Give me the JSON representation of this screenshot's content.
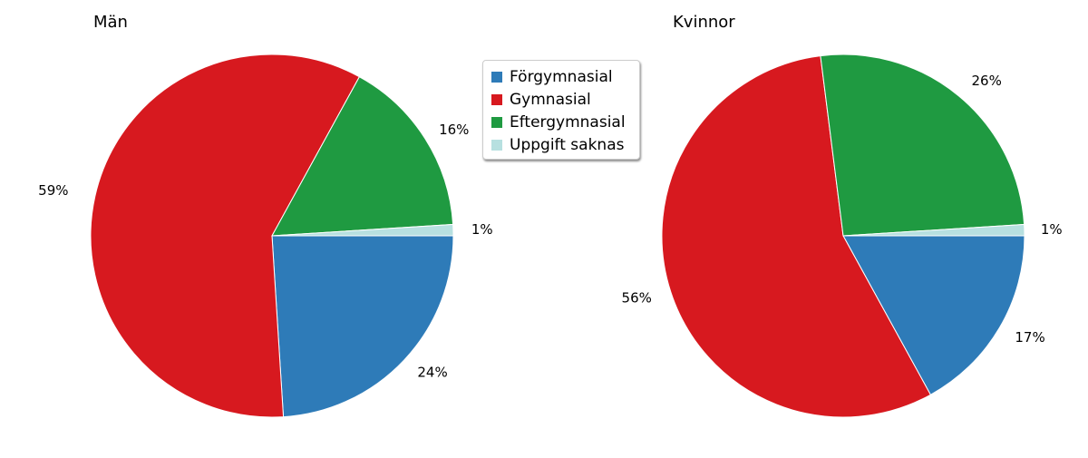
{
  "chart_data": [
    {
      "type": "pie",
      "title": "Män",
      "categories": [
        "Förgymnasial",
        "Gymnasial",
        "Eftergymnasial",
        "Uppgift saknas"
      ],
      "values": [
        24,
        59,
        16,
        1
      ],
      "labels": [
        "24%",
        "59%",
        "16%",
        "1%"
      ]
    },
    {
      "type": "pie",
      "title": "Kvinnor",
      "categories": [
        "Förgymnasial",
        "Gymnasial",
        "Eftergymnasial",
        "Uppgift saknas"
      ],
      "values": [
        17,
        56,
        26,
        1
      ],
      "labels": [
        "17%",
        "56%",
        "26%",
        "1%"
      ]
    }
  ],
  "legend": {
    "placement": "top-center",
    "items": [
      {
        "label": "Förgymnasial",
        "color": "#2e7bb8"
      },
      {
        "label": "Gymnasial",
        "color": "#d7191f"
      },
      {
        "label": "Eftergymnasial",
        "color": "#1f9a41"
      },
      {
        "label": "Uppgift saknas",
        "color": "#b7e0e0"
      }
    ]
  }
}
